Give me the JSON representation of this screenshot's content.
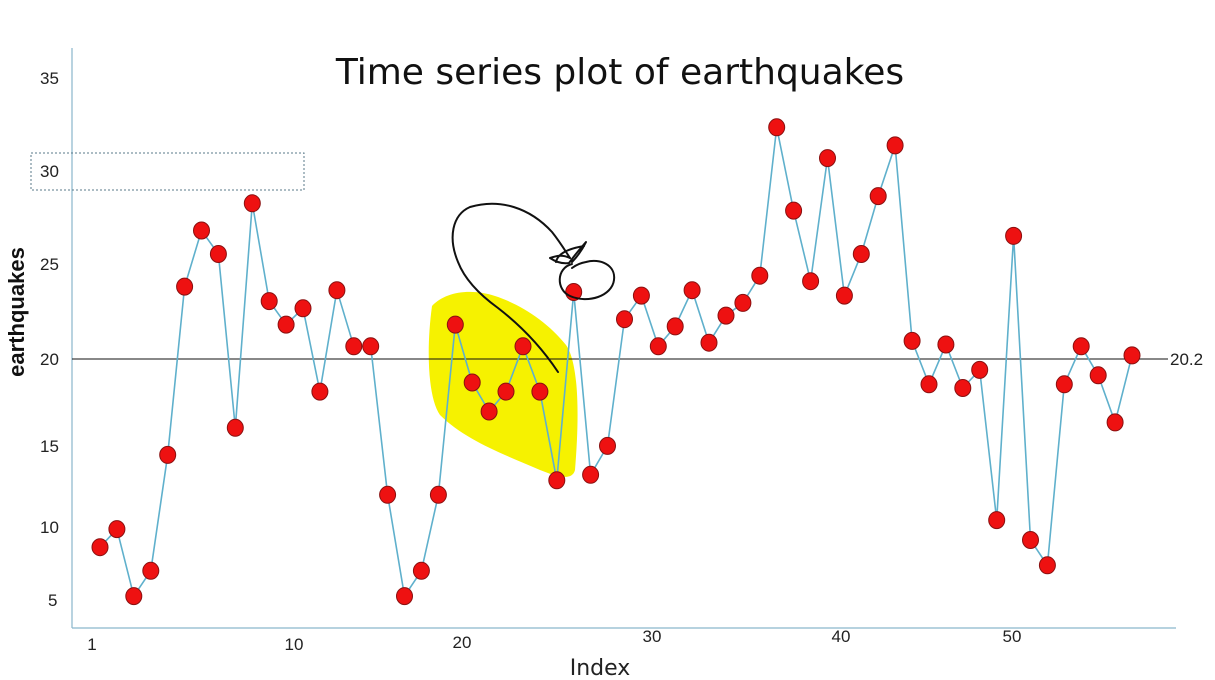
{
  "chart_data": {
    "type": "line",
    "title": "Time series plot of earthquakes",
    "xlabel": "Index",
    "ylabel": "earthquakes",
    "x_tick_labels": [
      "1",
      "10",
      "20",
      "30",
      "40",
      "50"
    ],
    "y_tick_labels": [
      "5",
      "10",
      "15",
      "20",
      "25",
      "30",
      "35"
    ],
    "ylim": [
      4,
      35.5
    ],
    "reference_line": {
      "value": 20.2,
      "label": "20.2"
    },
    "grid": false,
    "legend": "none",
    "markers": true,
    "series": [
      {
        "x": [
          1,
          2,
          3,
          4,
          5,
          6,
          7,
          8,
          9,
          10,
          11,
          12,
          13,
          14,
          15,
          16,
          17,
          18,
          19,
          20,
          21,
          22,
          23,
          24,
          25,
          26,
          27,
          28,
          29,
          30,
          31,
          32,
          33,
          34,
          35,
          36,
          37,
          38,
          39,
          40,
          41,
          42,
          43,
          44,
          45,
          46,
          47,
          48,
          49,
          50,
          51,
          52,
          53,
          54,
          55,
          56,
          57,
          58,
          59,
          60,
          61,
          62
        ],
        "y": [
          9.8,
          10.8,
          7.1,
          8.5,
          14.9,
          24.2,
          27.3,
          26.0,
          16.4,
          28.8,
          23.4,
          22.1,
          23.0,
          18.4,
          24.0,
          20.9,
          20.9,
          12.7,
          7.1,
          8.5,
          12.7,
          22.1,
          18.9,
          17.3,
          18.4,
          20.9,
          18.4,
          13.5,
          23.9,
          13.8,
          15.4,
          22.4,
          23.7,
          20.9,
          22.0,
          24.0,
          21.1,
          22.6,
          23.3,
          24.8,
          33.0,
          28.4,
          24.5,
          31.3,
          23.7,
          26.0,
          29.2,
          32.0,
          21.2,
          18.8,
          21.0,
          18.6,
          19.6,
          11.3,
          27.0,
          10.2,
          8.8,
          18.8,
          20.9,
          19.3,
          16.7,
          20.4
        ]
      }
    ],
    "colors": {
      "line": "#5fb0cc",
      "marker_fill": "#ee1111",
      "marker_stroke": "#8a1010",
      "axis": "#8ab6cc",
      "refline": "#111111",
      "highlight": "#f6f200",
      "annotation_ink": "#111111"
    }
  }
}
